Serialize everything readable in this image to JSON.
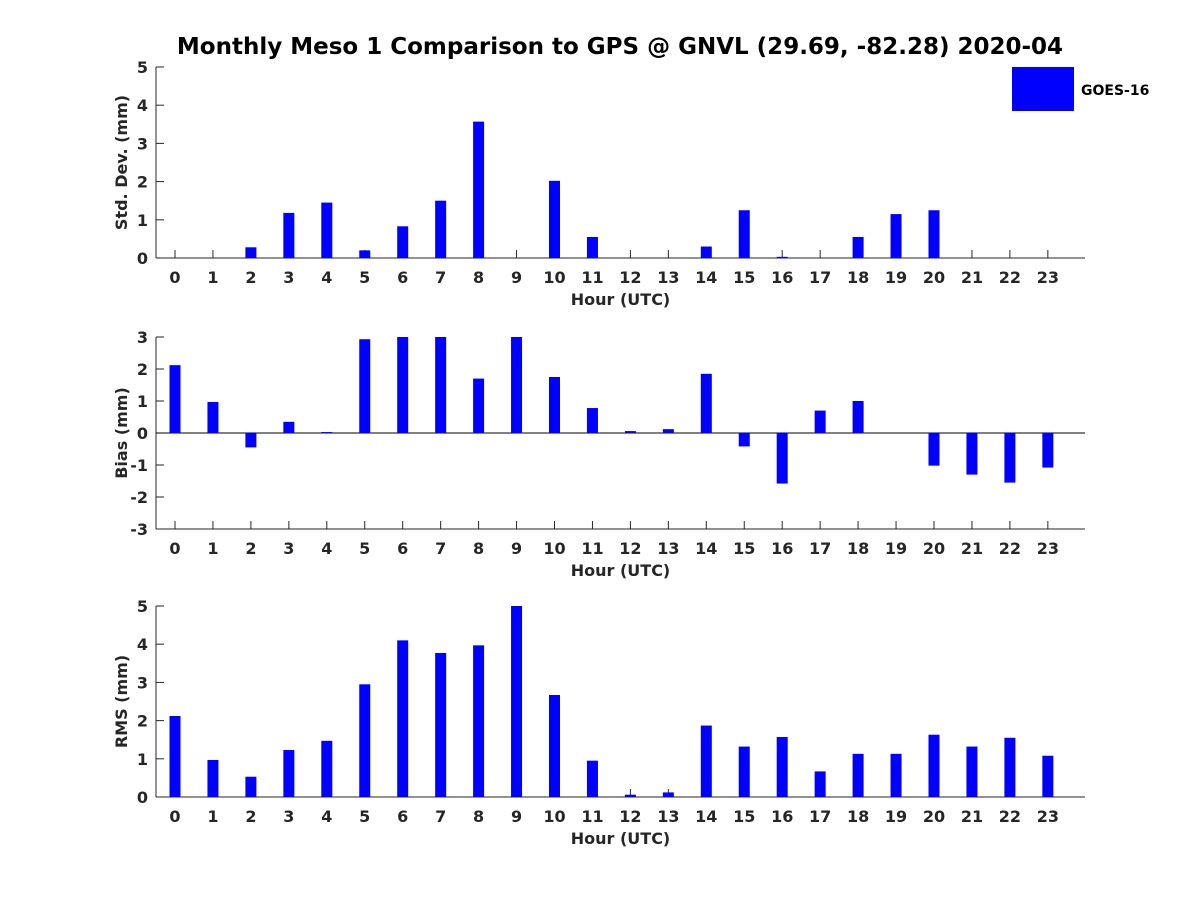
{
  "figure_title": "Monthly Meso 1 Comparison to GPS @ GNVL (29.69, -82.28) 2020-04",
  "legend": {
    "label": "GOES-16",
    "color": "#0000ff"
  },
  "bar_color": "#0000ff",
  "chart_data": [
    {
      "type": "bar",
      "title": "Monthly Meso 1 Comparison to GPS @ GNVL (29.69, -82.28) 2020-04",
      "xlabel": "Hour (UTC)",
      "ylabel": "Std. Dev. (mm)",
      "ylim": [
        0,
        5
      ],
      "yticks": [
        "0",
        "1",
        "2",
        "3",
        "4",
        "5"
      ],
      "categories": [
        "0",
        "1",
        "2",
        "3",
        "4",
        "5",
        "6",
        "7",
        "8",
        "9",
        "10",
        "11",
        "12",
        "13",
        "14",
        "15",
        "16",
        "17",
        "18",
        "19",
        "20",
        "21",
        "22",
        "23"
      ],
      "series": [
        {
          "name": "GOES-16",
          "values": [
            0,
            0,
            0.28,
            1.18,
            1.45,
            0.2,
            0.83,
            1.5,
            3.57,
            0,
            2.02,
            0.55,
            0,
            0,
            0.3,
            1.25,
            0.03,
            0,
            0.55,
            1.15,
            1.25,
            0,
            0,
            0
          ]
        }
      ]
    },
    {
      "type": "bar",
      "xlabel": "Hour (UTC)",
      "ylabel": "Bias (mm)",
      "ylim": [
        -3,
        3
      ],
      "yticks": [
        "-3",
        "-2",
        "-1",
        "0",
        "1",
        "2",
        "3"
      ],
      "categories": [
        "0",
        "1",
        "2",
        "3",
        "4",
        "5",
        "6",
        "7",
        "8",
        "9",
        "10",
        "11",
        "12",
        "13",
        "14",
        "15",
        "16",
        "17",
        "18",
        "19",
        "20",
        "21",
        "22",
        "23"
      ],
      "series": [
        {
          "name": "GOES-16",
          "values": [
            2.12,
            0.97,
            -0.45,
            0.35,
            0.03,
            2.93,
            3.0,
            3.0,
            1.7,
            3.0,
            1.75,
            0.78,
            0.06,
            0.12,
            1.85,
            -0.42,
            -1.58,
            0.7,
            1.0,
            0,
            -1.02,
            -1.3,
            -1.55,
            -1.08
          ]
        }
      ]
    },
    {
      "type": "bar",
      "xlabel": "Hour (UTC)",
      "ylabel": "RMS (mm)",
      "ylim": [
        0,
        5
      ],
      "yticks": [
        "0",
        "1",
        "2",
        "3",
        "4",
        "5"
      ],
      "categories": [
        "0",
        "1",
        "2",
        "3",
        "4",
        "5",
        "6",
        "7",
        "8",
        "9",
        "10",
        "11",
        "12",
        "13",
        "14",
        "15",
        "16",
        "17",
        "18",
        "19",
        "20",
        "21",
        "22",
        "23"
      ],
      "series": [
        {
          "name": "GOES-16",
          "values": [
            2.12,
            0.97,
            0.53,
            1.23,
            1.47,
            2.95,
            4.1,
            3.77,
            3.97,
            5.0,
            2.67,
            0.95,
            0.06,
            0.12,
            1.87,
            1.32,
            1.57,
            0.67,
            1.13,
            1.13,
            1.63,
            1.32,
            1.55,
            1.08
          ]
        }
      ]
    }
  ]
}
